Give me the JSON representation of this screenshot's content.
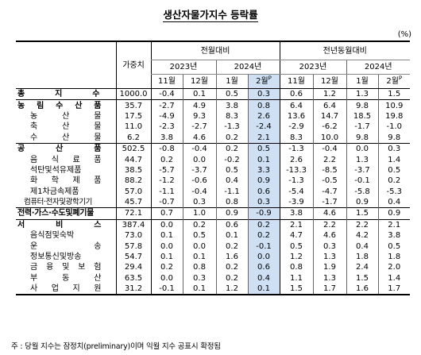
{
  "title": "생산자물가지수 등락률",
  "unit": "(%)",
  "header": {
    "weight": "가중치",
    "mom": "전월대비",
    "yoy": "전년동월대비",
    "y2023": "2023년",
    "y2024": "2024년",
    "m11": "11월",
    "m12": "12월",
    "m1": "1월",
    "m2": "2월",
    "p": "P"
  },
  "rows": [
    {
      "name": "총 지 수",
      "w": "1000.0",
      "v": [
        "-0.4",
        "0.1",
        "0.5",
        "0.3",
        "0.6",
        "1.2",
        "1.3",
        "1.5"
      ]
    },
    {
      "name": "농 림 수 산 품",
      "w": "35.7",
      "v": [
        "-2.7",
        "4.9",
        "3.8",
        "0.8",
        "6.4",
        "6.4",
        "9.8",
        "10.9"
      ]
    },
    {
      "name": "농 산 물",
      "w": "17.5",
      "v": [
        "-4.9",
        "9.3",
        "8.3",
        "2.6",
        "13.6",
        "14.7",
        "18.5",
        "19.8"
      ]
    },
    {
      "name": "축 산 물",
      "w": "11.0",
      "v": [
        "-2.3",
        "-2.7",
        "-1.3",
        "-2.4",
        "-2.9",
        "-6.2",
        "-1.7",
        "-1.0"
      ]
    },
    {
      "name": "수 산 물",
      "w": "6.2",
      "v": [
        "3.8",
        "4.6",
        "0.2",
        "2.1",
        "8.3",
        "10.0",
        "9.8",
        "9.8"
      ]
    },
    {
      "name": "공 산 품",
      "w": "502.5",
      "v": [
        "-0.8",
        "-0.4",
        "0.2",
        "0.5",
        "-1.3",
        "-0.4",
        "0.0",
        "0.3"
      ]
    },
    {
      "name": "음 식 료 품",
      "w": "44.7",
      "v": [
        "0.2",
        "0.0",
        "-0.2",
        "0.1",
        "2.6",
        "2.2",
        "1.3",
        "1.4"
      ]
    },
    {
      "name": "석탄및석유제품",
      "w": "38.5",
      "v": [
        "-5.7",
        "-3.7",
        "0.5",
        "3.3",
        "-13.3",
        "-8.5",
        "-3.7",
        "0.5"
      ]
    },
    {
      "name": "화 학 제 품",
      "w": "88.2",
      "v": [
        "-1.2",
        "-0.6",
        "0.4",
        "0.9",
        "-1.3",
        "-0.5",
        "-0.1",
        "0.2"
      ]
    },
    {
      "name": "제1차금속제품",
      "w": "57.0",
      "v": [
        "-1.1",
        "-0.4",
        "-1.1",
        "0.6",
        "-5.4",
        "-4.7",
        "-5.8",
        "-5.3"
      ]
    },
    {
      "name": "컴퓨터·전자및광학기기",
      "w": "45.7",
      "v": [
        "-0.7",
        "0.3",
        "0.8",
        "0.3",
        "-3.9",
        "-1.7",
        "0.9",
        "0.4"
      ]
    },
    {
      "name": "전력·가스·수도및폐기물",
      "w": "72.1",
      "v": [
        "0.7",
        "1.0",
        "0.9",
        "-0.9",
        "3.8",
        "4.6",
        "1.5",
        "0.9"
      ]
    },
    {
      "name": "서 비 스",
      "w": "387.4",
      "v": [
        "0.0",
        "0.2",
        "0.6",
        "0.2",
        "2.1",
        "2.2",
        "2.2",
        "2.1"
      ]
    },
    {
      "name": "음식점및숙박",
      "w": "73.0",
      "v": [
        "0.1",
        "0.5",
        "0.1",
        "0.2",
        "4.7",
        "4.6",
        "4.2",
        "3.8"
      ]
    },
    {
      "name": "운 송",
      "w": "57.8",
      "v": [
        "0.0",
        "0.0",
        "0.2",
        "-0.1",
        "0.5",
        "0.3",
        "0.4",
        "0.5"
      ]
    },
    {
      "name": "정보통신및방송",
      "w": "54.7",
      "v": [
        "0.1",
        "0.1",
        "1.6",
        "0.0",
        "1.2",
        "1.3",
        "1.8",
        "1.8"
      ]
    },
    {
      "name": "금 융 및 보 험",
      "w": "29.4",
      "v": [
        "0.2",
        "0.8",
        "0.2",
        "0.6",
        "0.8",
        "1.9",
        "2.4",
        "2.0"
      ]
    },
    {
      "name": "부 동 산",
      "w": "63.5",
      "v": [
        "0.0",
        "0.3",
        "0.2",
        "0.4",
        "1.1",
        "1.3",
        "1.5",
        "1.4"
      ]
    },
    {
      "name": "사 업 지 원",
      "w": "31.2",
      "v": [
        "-0.1",
        "0.1",
        "1.2",
        "0.1",
        "1.5",
        "1.7",
        "1.6",
        "1.7"
      ]
    }
  ],
  "note": "주 : 당월 지수는 잠정치(preliminary)이며 익월 지수 공표시 확정됨"
}
